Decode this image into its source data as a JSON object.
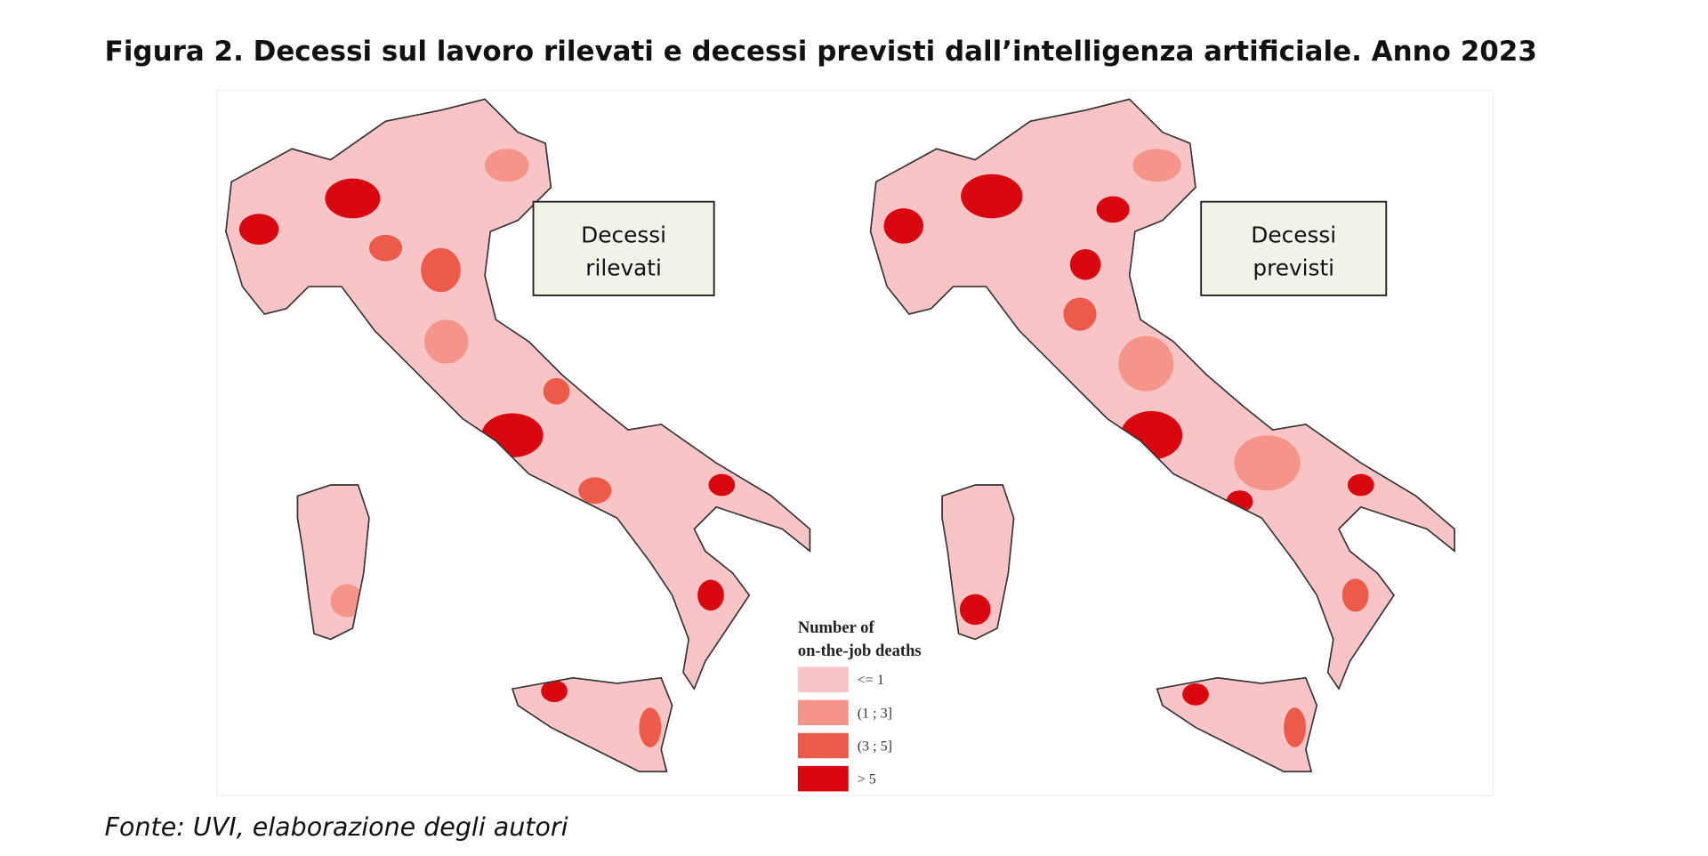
{
  "title": "Figura 2. Decessi sul lavoro rilevati e decessi previsti dall’intelligenza artificiale. Anno 2023",
  "maps": [
    {
      "label_lines": [
        "Decessi",
        "rilevati"
      ]
    },
    {
      "label_lines": [
        "Decessi",
        "previsti"
      ]
    }
  ],
  "legend": {
    "title_lines": [
      "Number of",
      "on-the-job deaths"
    ],
    "items": [
      {
        "label": "<= 1",
        "color": "#f9c4c6"
      },
      {
        "label": "(1 ; 3]",
        "color": "#f5958a"
      },
      {
        "label": "(3 ; 5]",
        "color": "#ec5a49"
      },
      {
        "label": "> 5",
        "color": "#d8070f"
      }
    ]
  },
  "source": "Fonte: UVI, elaborazione degli autori"
}
